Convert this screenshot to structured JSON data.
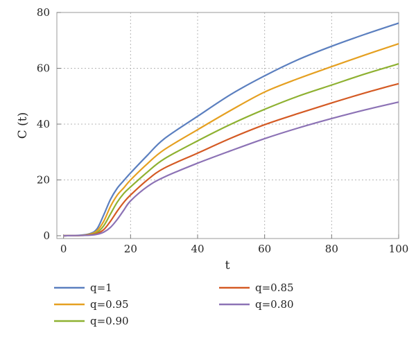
{
  "chart_data": {
    "type": "line",
    "title": "",
    "xlabel": "t",
    "ylabel": "C (t)",
    "xlim": [
      -2,
      100
    ],
    "ylim": [
      -1,
      80
    ],
    "xticks": [
      0,
      20,
      40,
      60,
      80,
      100
    ],
    "yticks": [
      0,
      20,
      40,
      60,
      80
    ],
    "grid": "dotted",
    "legend_position": "bottom",
    "x": [
      0,
      5,
      8,
      10,
      12,
      14,
      16,
      18,
      20,
      25,
      30,
      40,
      50,
      60,
      70,
      80,
      90,
      100
    ],
    "series": [
      {
        "name": "q=1",
        "color": "#5b7fbf",
        "values": [
          0,
          0.2,
          0.8,
          2.5,
          7.5,
          13,
          17,
          19.8,
          22.5,
          28.8,
          34.7,
          42.8,
          50.7,
          57.3,
          63.1,
          67.9,
          72.2,
          76.2
        ]
      },
      {
        "name": "q=0.95",
        "color": "#e5a021",
        "values": [
          0,
          0.1,
          0.6,
          1.8,
          5.2,
          10.5,
          14.5,
          17.2,
          20.0,
          25.8,
          30.8,
          38.0,
          45.0,
          51.5,
          56.3,
          60.6,
          64.8,
          68.8
        ]
      },
      {
        "name": "q=0.90",
        "color": "#8eb131",
        "values": [
          0,
          0.1,
          0.4,
          1.2,
          3.6,
          7.8,
          12,
          15.2,
          17.5,
          22.8,
          27.5,
          34.0,
          40.0,
          45.3,
          50.0,
          54.0,
          58.0,
          61.6
        ]
      },
      {
        "name": "q=0.85",
        "color": "#d45a24",
        "values": [
          0,
          0.1,
          0.3,
          0.8,
          2.2,
          5.2,
          8.8,
          12.0,
          14.6,
          20.0,
          24.2,
          29.6,
          35.0,
          39.8,
          43.8,
          47.6,
          51.2,
          54.5
        ]
      },
      {
        "name": "q=0.80",
        "color": "#8c72b5",
        "values": [
          0,
          0.1,
          0.2,
          0.5,
          1.3,
          3.0,
          5.8,
          9.2,
          12.5,
          17.6,
          21.0,
          26.0,
          30.5,
          34.8,
          38.6,
          42.0,
          45.1,
          47.9
        ]
      }
    ]
  }
}
